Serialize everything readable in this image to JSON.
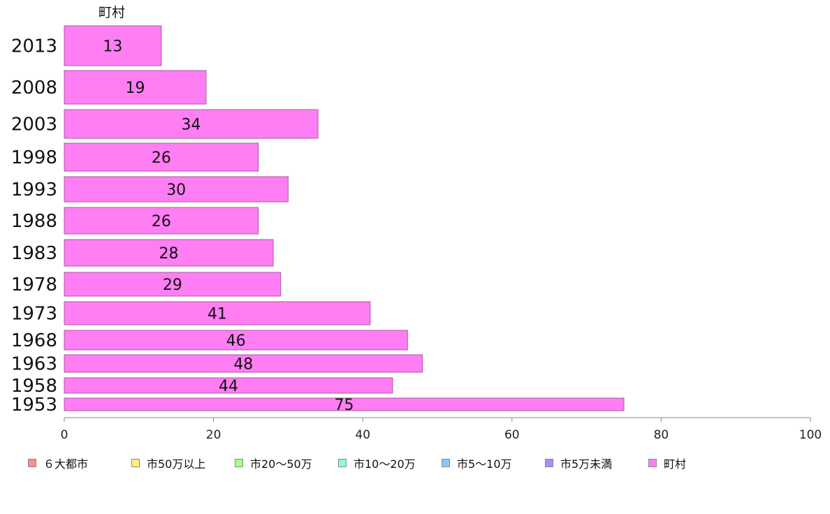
{
  "chart_data": {
    "type": "bar",
    "orientation": "horizontal",
    "column_header": "町村",
    "categories": [
      "2013",
      "2008",
      "2003",
      "1998",
      "1993",
      "1988",
      "1983",
      "1978",
      "1973",
      "1968",
      "1963",
      "1958",
      "1953"
    ],
    "values": [
      13,
      19,
      34,
      26,
      30,
      26,
      28,
      29,
      41,
      46,
      48,
      44,
      75
    ],
    "xlim": [
      0,
      100
    ],
    "xticks": [
      0,
      20,
      40,
      60,
      80,
      100
    ],
    "grid": false,
    "bar_color": "#ff7ef3",
    "legend_position": "bottom",
    "legend": [
      {
        "label": "６大都市",
        "color": "#ff8d8d"
      },
      {
        "label": "市50万以上",
        "color": "#ffee80"
      },
      {
        "label": "市20〜50万",
        "color": "#a8ff8a"
      },
      {
        "label": "市10〜20万",
        "color": "#8affd8"
      },
      {
        "label": "市5〜10万",
        "color": "#8ac8ff"
      },
      {
        "label": "市5万未満",
        "color": "#b08aff"
      },
      {
        "label": "町村",
        "color": "#ff7ef3"
      }
    ]
  }
}
